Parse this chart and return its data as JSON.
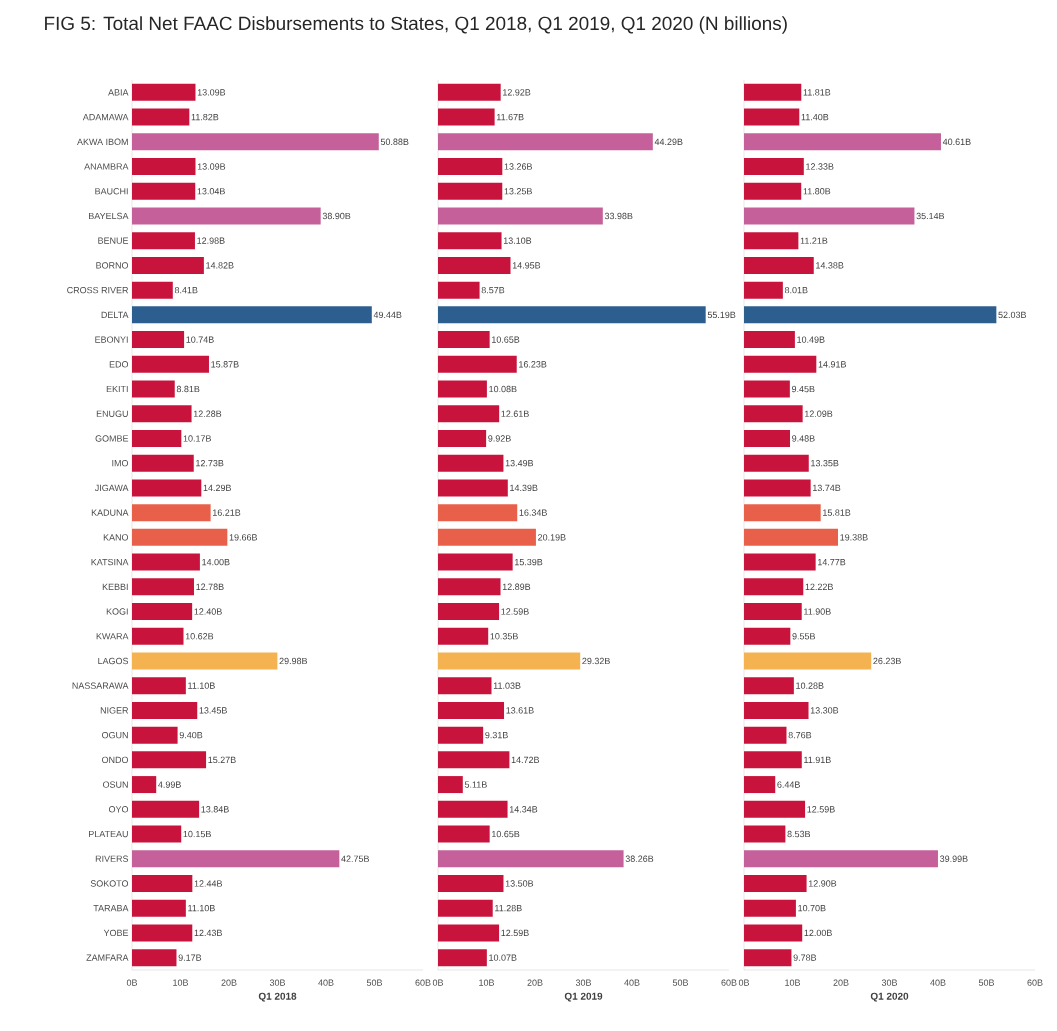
{
  "chart_data": [
    {
      "type": "bar",
      "orientation": "horizontal",
      "title": "FIG 5: Total Net FAAC Disbursements to States, Q1 2018, Q1 2019, Q1 2020 (N billions)",
      "xlabel": "Q1 2018",
      "categories": [
        "ABIA",
        "ADAMAWA",
        "AKWA IBOM",
        "ANAMBRA",
        "BAUCHI",
        "BAYELSA",
        "BENUE",
        "BORNO",
        "CROSS RIVER",
        "DELTA",
        "EBONYI",
        "EDO",
        "EKITI",
        "ENUGU",
        "GOMBE",
        "IMO",
        "JIGAWA",
        "KADUNA",
        "KANO",
        "KATSINA",
        "KEBBI",
        "KOGI",
        "KWARA",
        "LAGOS",
        "NASSARAWA",
        "NIGER",
        "OGUN",
        "ONDO",
        "OSUN",
        "OYO",
        "PLATEAU",
        "RIVERS",
        "SOKOTO",
        "TARABA",
        "YOBE",
        "ZAMFARA"
      ],
      "values": [
        13.09,
        11.82,
        50.88,
        13.09,
        13.04,
        38.9,
        12.98,
        14.82,
        8.41,
        49.44,
        10.74,
        15.87,
        8.81,
        12.28,
        10.17,
        12.73,
        14.29,
        16.21,
        19.66,
        14.0,
        12.78,
        12.4,
        10.62,
        29.98,
        11.1,
        13.45,
        9.4,
        15.27,
        4.99,
        13.84,
        10.15,
        42.75,
        12.44,
        11.1,
        12.43,
        9.17
      ],
      "value_labels": [
        "13.09B",
        "11.82B",
        "50.88B",
        "13.09B",
        "13.04B",
        "38.90B",
        "12.98B",
        "14.82B",
        "8.41B",
        "49.44B",
        "10.74B",
        "15.87B",
        "8.81B",
        "12.28B",
        "10.17B",
        "12.73B",
        "14.29B",
        "16.21B",
        "19.66B",
        "14.00B",
        "12.78B",
        "12.40B",
        "10.62B",
        "29.98B",
        "11.10B",
        "13.45B",
        "9.40B",
        "15.27B",
        "4.99B",
        "13.84B",
        "10.15B",
        "42.75B",
        "12.44B",
        "11.10B",
        "12.43B",
        "9.17B"
      ],
      "colors": [
        "#c8143c",
        "#c8143c",
        "#c5609a",
        "#c8143c",
        "#c8143c",
        "#c5609a",
        "#c8143c",
        "#c8143c",
        "#c8143c",
        "#2c5f8f",
        "#c8143c",
        "#c8143c",
        "#c8143c",
        "#c8143c",
        "#c8143c",
        "#c8143c",
        "#c8143c",
        "#e8604a",
        "#e8604a",
        "#c8143c",
        "#c8143c",
        "#c8143c",
        "#c8143c",
        "#f4b350",
        "#c8143c",
        "#c8143c",
        "#c8143c",
        "#c8143c",
        "#c8143c",
        "#c8143c",
        "#c8143c",
        "#c5609a",
        "#c8143c",
        "#c8143c",
        "#c8143c",
        "#c8143c"
      ],
      "xlim": [
        0,
        60
      ],
      "xticks": [
        {
          "value": 0,
          "label": "0B"
        },
        {
          "value": 10,
          "label": "10B"
        },
        {
          "value": 20,
          "label": "20B"
        },
        {
          "value": 30,
          "label": "30B"
        },
        {
          "value": 40,
          "label": "40B"
        },
        {
          "value": 50,
          "label": "50B"
        },
        {
          "value": 60,
          "label": "60B"
        }
      ]
    },
    {
      "type": "bar",
      "orientation": "horizontal",
      "xlabel": "Q1 2019",
      "tick_labels": "x",
      "categories": [
        null,
        null,
        null,
        null,
        null,
        null,
        null,
        null,
        null,
        null,
        null,
        null,
        null,
        null,
        null,
        null,
        null,
        null,
        null,
        null,
        null,
        null,
        null,
        null,
        null,
        null,
        null,
        null,
        null,
        null,
        null,
        null,
        null,
        null,
        null,
        null
      ],
      "values": [
        12.92,
        11.67,
        44.29,
        13.26,
        13.25,
        33.98,
        13.1,
        14.95,
        8.57,
        55.19,
        10.65,
        16.23,
        10.08,
        12.61,
        9.92,
        13.49,
        14.39,
        16.34,
        20.19,
        15.39,
        12.89,
        12.59,
        10.35,
        29.32,
        11.03,
        13.61,
        9.31,
        14.72,
        5.11,
        14.34,
        10.65,
        38.26,
        13.5,
        11.28,
        12.59,
        10.07
      ],
      "value_labels": [
        "12.92B",
        "11.67B",
        "44.29B",
        "13.26B",
        "13.25B",
        "33.98B",
        "13.10B",
        "14.95B",
        "8.57B",
        "55.19B",
        "10.65B",
        "16.23B",
        "10.08B",
        "12.61B",
        "9.92B",
        "13.49B",
        "14.39B",
        "16.34B",
        "20.19B",
        "15.39B",
        "12.89B",
        "12.59B",
        "10.35B",
        "29.32B",
        "11.03B",
        "13.61B",
        "9.31B",
        "14.72B",
        "5.11B",
        "14.34B",
        "10.65B",
        "38.26B",
        "13.50B",
        "11.28B",
        "12.59B",
        "10.07B"
      ],
      "colors": [
        "#c8143c",
        "#c8143c",
        "#c5609a",
        "#c8143c",
        "#c8143c",
        "#c5609a",
        "#c8143c",
        "#c8143c",
        "#c8143c",
        "#2c5f8f",
        "#c8143c",
        "#c8143c",
        "#c8143c",
        "#c8143c",
        "#c8143c",
        "#c8143c",
        "#c8143c",
        "#e8604a",
        "#e8604a",
        "#c8143c",
        "#c8143c",
        "#c8143c",
        "#c8143c",
        "#f4b350",
        "#c8143c",
        "#c8143c",
        "#c8143c",
        "#c8143c",
        "#c8143c",
        "#c8143c",
        "#c8143c",
        "#c5609a",
        "#c8143c",
        "#c8143c",
        "#c8143c",
        "#c8143c"
      ],
      "xlim": [
        0,
        60
      ],
      "xticks": [
        {
          "value": 0,
          "label": "0B"
        },
        {
          "value": 10,
          "label": "10B"
        },
        {
          "value": 20,
          "label": "20B"
        },
        {
          "value": 30,
          "label": "30B"
        },
        {
          "value": 40,
          "label": "40B"
        },
        {
          "value": 50,
          "label": "50B"
        },
        {
          "value": 60,
          "label": "60B"
        }
      ]
    },
    {
      "type": "bar",
      "orientation": "horizontal",
      "xlabel": "Q1 2020",
      "tick_labels": "x",
      "categories": [
        null,
        null,
        null,
        null,
        null,
        null,
        null,
        null,
        null,
        null,
        null,
        null,
        null,
        null,
        null,
        null,
        null,
        null,
        null,
        null,
        null,
        null,
        null,
        null,
        null,
        null,
        null,
        null,
        null,
        null,
        null,
        null,
        null,
        null,
        null,
        null
      ],
      "values": [
        11.81,
        11.4,
        40.61,
        12.33,
        11.8,
        35.14,
        11.21,
        14.38,
        8.01,
        52.03,
        10.49,
        14.91,
        9.45,
        12.09,
        9.48,
        13.35,
        13.74,
        15.81,
        19.38,
        14.77,
        12.22,
        11.9,
        9.55,
        26.23,
        10.28,
        13.3,
        8.76,
        11.91,
        6.44,
        12.59,
        8.53,
        39.99,
        12.9,
        10.7,
        12.0,
        9.78
      ],
      "value_labels": [
        "11.81B",
        "11.40B",
        "40.61B",
        "12.33B",
        "11.80B",
        "35.14B",
        "11.21B",
        "14.38B",
        "8.01B",
        "52.03B",
        "10.49B",
        "14.91B",
        "9.45B",
        "12.09B",
        "9.48B",
        "13.35B",
        "13.74B",
        "15.81B",
        "19.38B",
        "14.77B",
        "12.22B",
        "11.90B",
        "9.55B",
        "26.23B",
        "10.28B",
        "13.30B",
        "8.76B",
        "11.91B",
        "6.44B",
        "12.59B",
        "8.53B",
        "39.99B",
        "12.90B",
        "10.70B",
        "12.00B",
        "9.78B"
      ],
      "colors": [
        "#c8143c",
        "#c8143c",
        "#c5609a",
        "#c8143c",
        "#c8143c",
        "#c5609a",
        "#c8143c",
        "#c8143c",
        "#c8143c",
        "#2c5f8f",
        "#c8143c",
        "#c8143c",
        "#c8143c",
        "#c8143c",
        "#c8143c",
        "#c8143c",
        "#c8143c",
        "#e8604a",
        "#e8604a",
        "#c8143c",
        "#c8143c",
        "#c8143c",
        "#c8143c",
        "#f4b350",
        "#c8143c",
        "#c8143c",
        "#c8143c",
        "#c8143c",
        "#c8143c",
        "#c8143c",
        "#c8143c",
        "#c5609a",
        "#c8143c",
        "#c8143c",
        "#c8143c",
        "#c8143c"
      ],
      "xlim": [
        0,
        60
      ],
      "xticks": [
        {
          "value": 0,
          "label": "0B"
        },
        {
          "value": 10,
          "label": "10B"
        },
        {
          "value": 20,
          "label": "20B"
        },
        {
          "value": 30,
          "label": "30B"
        },
        {
          "value": 40,
          "label": "40B"
        },
        {
          "value": 50,
          "label": "50B"
        },
        {
          "value": 60,
          "label": "60B"
        }
      ]
    }
  ]
}
